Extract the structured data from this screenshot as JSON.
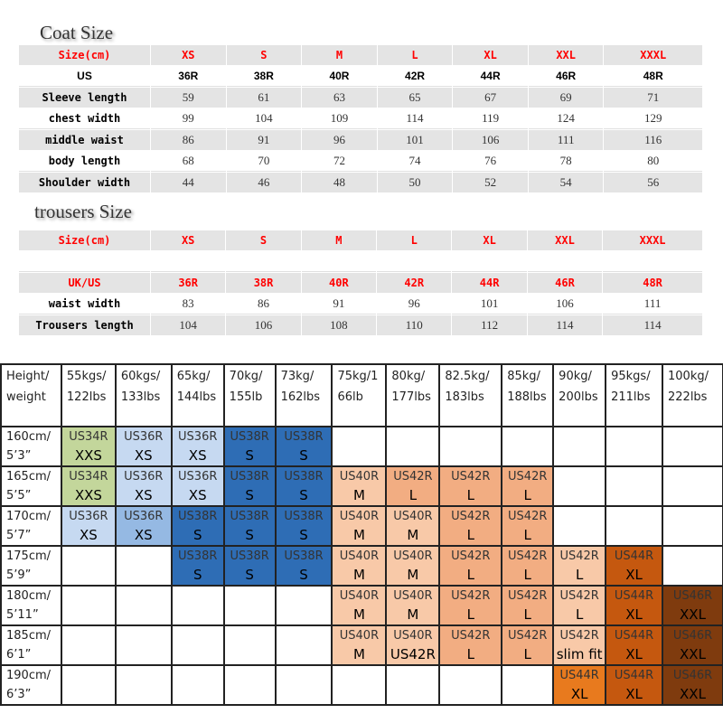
{
  "coat": {
    "title": "Coat Size",
    "rows": [
      [
        "Size(cm)",
        "XS",
        "S",
        "M",
        "L",
        "XL",
        "XXL",
        "XXXL"
      ],
      [
        "US",
        "36R",
        "38R",
        "40R",
        "42R",
        "44R",
        "46R",
        "48R"
      ],
      [
        "Sleeve length",
        "59",
        "61",
        "63",
        "65",
        "67",
        "69",
        "71"
      ],
      [
        "chest width",
        "99",
        "104",
        "109",
        "114",
        "119",
        "124",
        "129"
      ],
      [
        "middle waist",
        "86",
        "91",
        "96",
        "101",
        "106",
        "111",
        "116"
      ],
      [
        "body length",
        "68",
        "70",
        "72",
        "74",
        "76",
        "78",
        "80"
      ],
      [
        "Shoulder width",
        "44",
        "46",
        "48",
        "50",
        "52",
        "54",
        "56"
      ]
    ]
  },
  "trousers": {
    "title": "trousers Size",
    "rows": [
      [
        "Size(cm)",
        "XS",
        "S",
        "M",
        "L",
        "XL",
        "XXL",
        "XXXL"
      ],
      [
        "",
        "",
        "",
        "",
        "",
        "",
        "",
        ""
      ],
      [
        "UK/US",
        "36R",
        "38R",
        "40R",
        "42R",
        "44R",
        "46R",
        "48R"
      ],
      [
        "waist width",
        "83",
        "86",
        "91",
        "96",
        "101",
        "106",
        "111"
      ],
      [
        "Trousers length",
        "104",
        "106",
        "108",
        "110",
        "112",
        "114",
        "114"
      ]
    ]
  },
  "grid": {
    "palette": {
      "g": "#c3d69b",
      "lb": "#c6d9f1",
      "mb": "#95b9e3",
      "db": "#2e6db5",
      "o1": "#f8c9a8",
      "o2": "#f2ad82",
      "o3": "#e87a1e",
      "br": "#c5580f",
      "dk": "#7f3b0e"
    },
    "headers": [
      "Height/ weight",
      "55kgs/ 122lbs",
      "60kgs/ 133lbs",
      "65kg/ 144lbs",
      "70kg/ 155lb",
      "73kg/ 162lbs",
      "75kg/1 66lb",
      "80kg/ 177lbs",
      "82.5kg/ 183lbs",
      "85kg/ 188lbs",
      "90kg/ 200lbs",
      "95kgs/ 211lbs",
      "100kg/ 222lbs"
    ],
    "rows": [
      {
        "label": "160cm/ 5’3”",
        "cells": [
          [
            "US34R",
            "XXS",
            "g"
          ],
          [
            "US36R",
            "XS",
            "lb"
          ],
          [
            "US36R",
            "XS",
            "lb"
          ],
          [
            "US38R",
            "S",
            "db"
          ],
          [
            "US38R",
            "S",
            "db"
          ],
          null,
          null,
          null,
          null,
          null,
          null,
          null
        ]
      },
      {
        "label": "165cm/ 5’5”",
        "cells": [
          [
            "US34R",
            "XXS",
            "g"
          ],
          [
            "US36R",
            "XS",
            "lb"
          ],
          [
            "US36R",
            "XS",
            "lb"
          ],
          [
            "US38R",
            "S",
            "db"
          ],
          [
            "US38R",
            "S",
            "db"
          ],
          [
            "US40R",
            "M",
            "o1"
          ],
          [
            "US42R",
            "L",
            "o2"
          ],
          [
            "US42R",
            "L",
            "o2"
          ],
          [
            "US42R",
            "L",
            "o2"
          ],
          null,
          null,
          null
        ]
      },
      {
        "label": "170cm/ 5’7”",
        "cells": [
          [
            "US36R",
            "XS",
            "lb"
          ],
          [
            "US36R",
            "XS",
            "mb"
          ],
          [
            "US38R",
            "S",
            "db"
          ],
          [
            "US38R",
            "S",
            "db"
          ],
          [
            "US38R",
            "S",
            "db"
          ],
          [
            "US40R",
            "M",
            "o1"
          ],
          [
            "US40R",
            "M",
            "o1"
          ],
          [
            "US42R",
            "L",
            "o2"
          ],
          [
            "US42R",
            "L",
            "o2"
          ],
          null,
          null,
          null
        ]
      },
      {
        "label": "175cm/ 5’9”",
        "cells": [
          null,
          null,
          [
            "US38R",
            "S",
            "db"
          ],
          [
            "US38R",
            "S",
            "db"
          ],
          [
            "US38R",
            "S",
            "db"
          ],
          [
            "US40R",
            "M",
            "o1"
          ],
          [
            "US40R",
            "M",
            "o1"
          ],
          [
            "US42R",
            "L",
            "o2"
          ],
          [
            "US42R",
            "L",
            "o2"
          ],
          [
            "US42R",
            "L",
            "o1"
          ],
          [
            "US44R",
            "XL",
            "br"
          ],
          null
        ]
      },
      {
        "label": "180cm/ 5’11”",
        "cells": [
          null,
          null,
          null,
          null,
          null,
          [
            "US40R",
            "M",
            "o1"
          ],
          [
            "US40R",
            "M",
            "o1"
          ],
          [
            "US42R",
            "L",
            "o2"
          ],
          [
            "US42R",
            "L",
            "o2"
          ],
          [
            "US42R",
            "L",
            "o1"
          ],
          [
            "US44R",
            "XL",
            "br"
          ],
          [
            "US46R",
            "XXL",
            "dk"
          ]
        ]
      },
      {
        "label": "185cm/ 6’1”",
        "cells": [
          null,
          null,
          null,
          null,
          null,
          [
            "US40R",
            "M",
            "o1"
          ],
          [
            "US40R",
            "US42R",
            "o1"
          ],
          [
            "US42R",
            "L",
            "o2"
          ],
          [
            "US42R",
            "L",
            "o2"
          ],
          [
            "US42R",
            "slim fit",
            "o1"
          ],
          [
            "US44R",
            "XL",
            "br"
          ],
          [
            "US46R",
            "XXL",
            "dk"
          ]
        ]
      },
      {
        "label": "190cm/ 6’3”",
        "cells": [
          null,
          null,
          null,
          null,
          null,
          null,
          null,
          null,
          null,
          [
            "US44R",
            "XL",
            "o3"
          ],
          [
            "US44R",
            "XL",
            "br"
          ],
          [
            "US46R",
            "XXL",
            "dk"
          ]
        ]
      }
    ]
  }
}
